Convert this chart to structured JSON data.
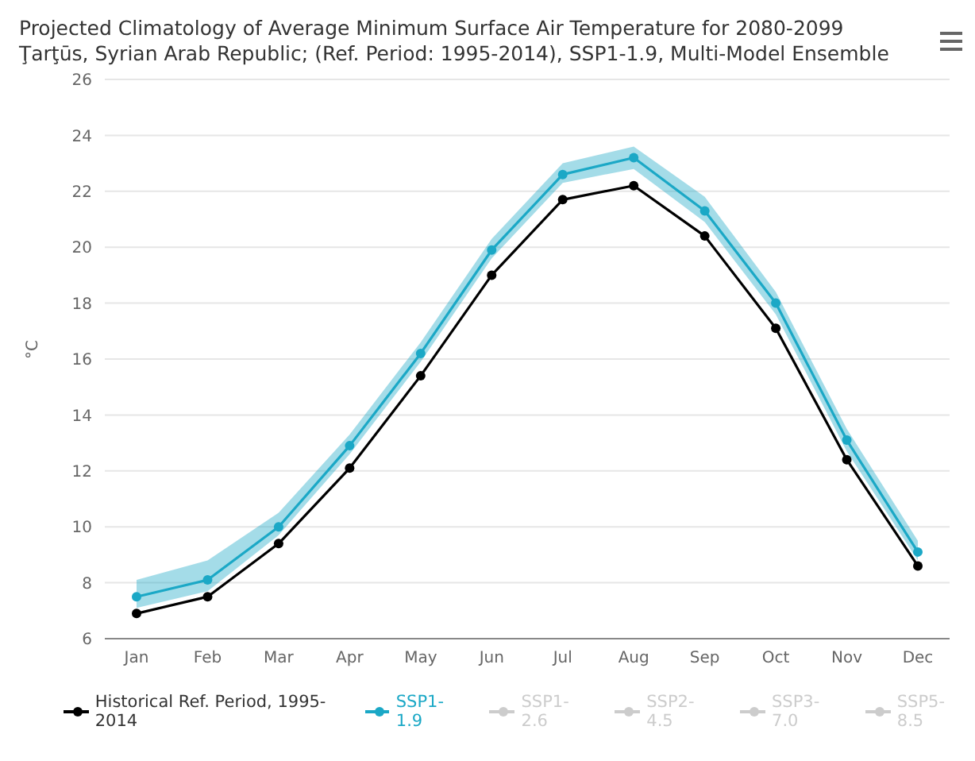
{
  "chart_data": {
    "type": "line",
    "title": "Projected Climatology of Average Minimum Surface Air Temperature for 2080-2099",
    "subtitle": "Ţarţūs, Syrian Arab Republic; (Ref. Period: 1995-2014), SSP1-1.9, Multi-Model Ensemble",
    "ylabel": "°C",
    "categories": [
      "Jan",
      "Feb",
      "Mar",
      "Apr",
      "May",
      "Jun",
      "Jul",
      "Aug",
      "Sep",
      "Oct",
      "Nov",
      "Dec"
    ],
    "series": [
      {
        "name": "Historical Ref. Period, 1995-2014",
        "color": "#000000",
        "values": [
          6.9,
          7.5,
          9.4,
          12.1,
          15.4,
          19.0,
          21.7,
          22.2,
          20.4,
          17.1,
          12.4,
          8.6
        ]
      },
      {
        "name": "SSP1-1.9",
        "color": "#1ba8c6",
        "values": [
          7.5,
          8.1,
          10.0,
          12.9,
          16.2,
          19.9,
          22.6,
          23.2,
          21.3,
          18.0,
          13.1,
          9.1
        ],
        "lower": [
          7.1,
          7.7,
          9.7,
          12.6,
          15.9,
          19.6,
          22.3,
          22.8,
          20.9,
          17.6,
          12.7,
          8.8
        ],
        "upper": [
          8.1,
          8.8,
          10.5,
          13.3,
          16.6,
          20.3,
          23.0,
          23.6,
          21.8,
          18.4,
          13.5,
          9.5
        ]
      },
      {
        "name": "SSP1-2.6",
        "color": "#cccccc",
        "values": [
          null,
          null,
          null,
          null,
          null,
          null,
          null,
          null,
          null,
          null,
          null,
          null
        ]
      },
      {
        "name": "SSP2-4.5",
        "color": "#cccccc",
        "values": [
          null,
          null,
          null,
          null,
          null,
          null,
          null,
          null,
          null,
          null,
          null,
          null
        ]
      },
      {
        "name": "SSP3-7.0",
        "color": "#cccccc",
        "values": [
          null,
          null,
          null,
          null,
          null,
          null,
          null,
          null,
          null,
          null,
          null,
          null
        ]
      },
      {
        "name": "SSP5-8.5",
        "color": "#cccccc",
        "values": [
          null,
          null,
          null,
          null,
          null,
          null,
          null,
          null,
          null,
          null,
          null,
          null
        ]
      }
    ],
    "ylim": [
      6,
      26
    ],
    "yticks": [
      6,
      8,
      10,
      12,
      14,
      16,
      18,
      20,
      22,
      24,
      26
    ],
    "grid": "y",
    "legend": "bottom",
    "marker": "circle",
    "line_style": "solid"
  }
}
